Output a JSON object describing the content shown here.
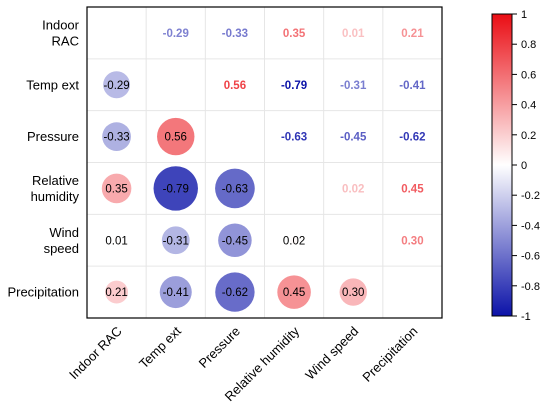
{
  "chart_data": {
    "type": "heatmap",
    "subtype": "correlation-matrix",
    "variables": [
      "Indoor RAC",
      "Temp ext",
      "Pressure",
      "Relative humidity",
      "Wind speed",
      "Precipitation"
    ],
    "row_labels": [
      [
        "Indoor",
        "RAC"
      ],
      [
        "Temp ext"
      ],
      [
        "Pressure"
      ],
      [
        "Relative",
        "humidity"
      ],
      [
        "Wind",
        "speed"
      ],
      [
        "Precipitation"
      ]
    ],
    "col_labels": [
      "Indoor RAC",
      "Temp ext",
      "Pressure",
      "Relative humidity",
      "Wind speed",
      "Precipitation"
    ],
    "matrix": [
      [
        null,
        -0.29,
        -0.33,
        0.35,
        0.01,
        0.21
      ],
      [
        -0.29,
        null,
        0.56,
        -0.79,
        -0.31,
        -0.41
      ],
      [
        -0.33,
        0.56,
        null,
        -0.63,
        -0.45,
        -0.62
      ],
      [
        0.35,
        -0.79,
        -0.63,
        null,
        0.02,
        0.45
      ],
      [
        0.01,
        -0.31,
        -0.45,
        0.02,
        null,
        0.3
      ],
      [
        0.21,
        -0.41,
        -0.62,
        0.45,
        0.3,
        null
      ]
    ],
    "lower_triangle": "circles sized by |r| with value labels",
    "upper_triangle": "colored value text",
    "colorbar": {
      "range": [
        -1,
        1
      ],
      "ticks": [
        "1",
        "0.8",
        "0.6",
        "0.4",
        "0.2",
        "0",
        "-0.2",
        "-0.4",
        "-0.6",
        "-0.8",
        "-1"
      ],
      "colors": {
        "negative": "#0b12a8",
        "neutral": "#ffffff",
        "positive": "#ea0d14"
      }
    },
    "grid": true
  }
}
